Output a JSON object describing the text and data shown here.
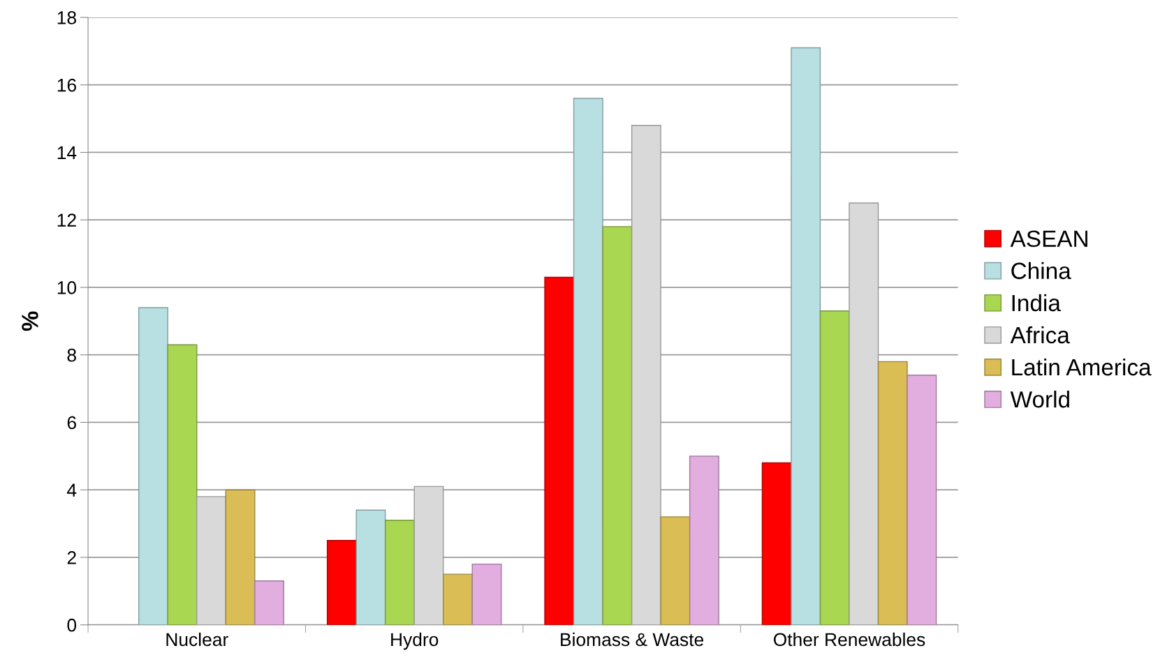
{
  "chart_data": {
    "type": "bar",
    "ylabel": "%",
    "categories": [
      "Nuclear",
      "Hydro",
      "Biomass & Waste",
      "Other Renewables"
    ],
    "series": [
      {
        "name": "ASEAN",
        "color": "#ff0000",
        "values": [
          null,
          2.5,
          10.3,
          4.8
        ]
      },
      {
        "name": "China",
        "color": "#b8dfe2",
        "values": [
          9.4,
          3.4,
          15.6,
          17.1
        ]
      },
      {
        "name": "India",
        "color": "#aad751",
        "values": [
          8.3,
          3.1,
          11.8,
          9.3
        ]
      },
      {
        "name": "Africa",
        "color": "#d9d9d9",
        "values": [
          3.8,
          4.1,
          14.8,
          12.5
        ]
      },
      {
        "name": "Latin America",
        "color": "#dbbd55",
        "values": [
          4.0,
          1.5,
          3.2,
          7.8
        ]
      },
      {
        "name": "World",
        "color": "#e2addf",
        "values": [
          1.3,
          1.8,
          5.0,
          7.4
        ]
      }
    ],
    "ylim": [
      0,
      18
    ],
    "yticks": [
      0,
      2,
      4,
      6,
      8,
      10,
      12,
      14,
      16,
      18
    ],
    "grid": "y",
    "legend": "right"
  }
}
